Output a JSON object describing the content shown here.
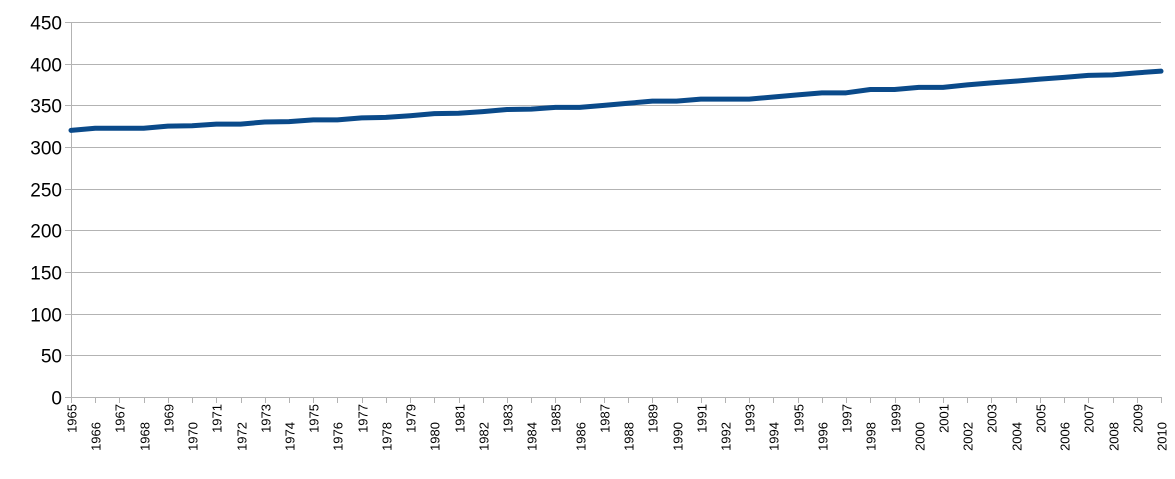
{
  "chart_data": {
    "type": "line",
    "title": "",
    "xlabel": "",
    "ylabel": "",
    "ylim": [
      0,
      450
    ],
    "y_ticks": [
      0,
      50,
      100,
      150,
      200,
      250,
      300,
      350,
      400,
      450
    ],
    "grid": true,
    "legend": "none",
    "x": [
      "1965",
      "1966",
      "1967",
      "1968",
      "1969",
      "1970",
      "1971",
      "1972",
      "1973",
      "1974",
      "1975",
      "1976",
      "1977",
      "1978",
      "1979",
      "1980",
      "1981",
      "1982",
      "1983",
      "1984",
      "1985",
      "1986",
      "1987",
      "1988",
      "1989",
      "1990",
      "1991",
      "1992",
      "1993",
      "1994",
      "1995",
      "1996",
      "1997",
      "1998",
      "1999",
      "2000",
      "2001",
      "2002",
      "2003",
      "2004",
      "2005",
      "2006",
      "2007",
      "2008",
      "2009",
      "2010"
    ],
    "series": [
      {
        "color": "#0a4a8a",
        "values": [
          320.0,
          322.5,
          322.5,
          322.5,
          325.0,
          325.5,
          327.5,
          327.5,
          330.0,
          330.5,
          332.5,
          332.5,
          335.0,
          335.5,
          337.5,
          340.0,
          340.5,
          342.5,
          345.0,
          345.5,
          347.5,
          347.5,
          350.0,
          352.5,
          355.0,
          355.0,
          357.5,
          357.5,
          357.5,
          360.0,
          362.5,
          365.0,
          365.0,
          369.0,
          369.0,
          371.5,
          371.5,
          374.5,
          377.0,
          379.0,
          381.5,
          383.5,
          386.0,
          386.5,
          389.0,
          391.0
        ]
      }
    ]
  }
}
